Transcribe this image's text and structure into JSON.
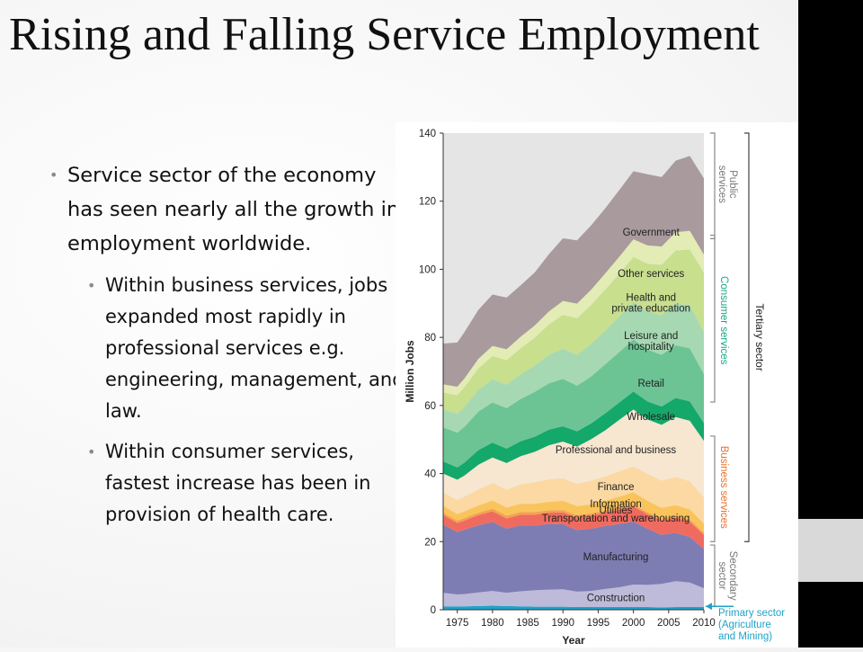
{
  "slide": {
    "title": "Rising and Falling Service Employment",
    "bullets": [
      {
        "level": 1,
        "text": "Service sector of the economy has seen nearly all the growth in employment worldwide."
      },
      {
        "level": 2,
        "text": "Within business services, jobs expanded most rapidly in professional services e.g. engineering, management, and law."
      },
      {
        "level": 2,
        "text": "Within consumer services, fastest increase has been in provision of health care."
      }
    ]
  },
  "chart_data": {
    "type": "area",
    "stacked": true,
    "xlabel": "Year",
    "ylabel": "Million Jobs",
    "ylim": [
      0,
      140
    ],
    "xlim": [
      1973,
      2010
    ],
    "yticks": [
      0,
      20,
      40,
      60,
      80,
      100,
      120,
      140
    ],
    "xticks": [
      1975,
      1980,
      1985,
      1990,
      1995,
      2000,
      2005,
      2010
    ],
    "x": [
      1973,
      1975,
      1976,
      1978,
      1980,
      1982,
      1984,
      1986,
      1988,
      1990,
      1992,
      1994,
      1996,
      1998,
      2000,
      2002,
      2004,
      2006,
      2008,
      2010
    ],
    "series": [
      {
        "name": "Primary sector (Agriculture and Mining)",
        "color": "#1fa3c8",
        "values": [
          1.0,
          1.0,
          1.0,
          1.1,
          1.2,
          1.1,
          1.0,
          0.9,
          0.9,
          0.9,
          0.8,
          0.8,
          0.8,
          0.8,
          0.8,
          0.8,
          0.7,
          0.8,
          0.8,
          0.8
        ]
      },
      {
        "name": "Construction",
        "color": "#bdbbd9",
        "values": [
          4.0,
          3.5,
          3.6,
          4.0,
          4.3,
          3.9,
          4.4,
          4.8,
          5.0,
          5.1,
          4.5,
          4.7,
          5.3,
          5.8,
          6.6,
          6.5,
          6.9,
          7.6,
          7.2,
          5.5
        ]
      },
      {
        "name": "Manufacturing",
        "color": "#7d7db3",
        "values": [
          20.0,
          18.3,
          18.9,
          19.7,
          20.3,
          18.8,
          19.4,
          19.0,
          19.3,
          19.1,
          18.1,
          18.3,
          18.5,
          18.6,
          18.5,
          16.5,
          14.4,
          14.2,
          13.4,
          11.5
        ]
      },
      {
        "name": "Transportation and warehousing",
        "color": "#ef6b60",
        "values": [
          2.8,
          2.7,
          2.7,
          3.0,
          3.1,
          3.0,
          3.1,
          3.2,
          3.3,
          3.5,
          3.6,
          3.8,
          4.0,
          4.2,
          4.4,
          4.2,
          4.2,
          4.4,
          4.5,
          4.2
        ]
      },
      {
        "name": "Utilities",
        "color": "#f7a04e",
        "values": [
          0.7,
          0.7,
          0.7,
          0.7,
          0.8,
          0.8,
          0.8,
          0.8,
          0.7,
          0.7,
          0.7,
          0.7,
          0.6,
          0.6,
          0.6,
          0.6,
          0.6,
          0.6,
          0.6,
          0.6
        ]
      },
      {
        "name": "Information",
        "color": "#f9c45c",
        "values": [
          2.0,
          1.9,
          2.0,
          2.1,
          2.4,
          2.4,
          2.4,
          2.4,
          2.5,
          2.7,
          2.7,
          2.7,
          2.9,
          3.2,
          3.6,
          3.4,
          3.1,
          3.1,
          3.0,
          2.7
        ]
      },
      {
        "name": "Finance",
        "color": "#fcd9a3",
        "values": [
          4.0,
          4.1,
          4.3,
          4.7,
          5.1,
          5.3,
          5.7,
          6.3,
          6.6,
          6.6,
          6.5,
          6.9,
          7.0,
          7.4,
          7.6,
          7.9,
          8.0,
          8.3,
          8.2,
          7.7
        ]
      },
      {
        "name": "Professional and business",
        "color": "#f7e6d0",
        "values": [
          5.5,
          6.0,
          6.2,
          7.3,
          7.5,
          7.8,
          8.3,
          9.0,
          10.0,
          10.8,
          11.0,
          12.2,
          13.6,
          15.2,
          16.7,
          16.0,
          16.4,
          17.6,
          17.8,
          16.6
        ]
      },
      {
        "name": "Wholesale",
        "color": "#14a86b",
        "values": [
          3.6,
          3.6,
          3.8,
          4.3,
          4.4,
          4.2,
          4.4,
          4.4,
          4.6,
          4.5,
          4.5,
          4.6,
          5.0,
          5.1,
          5.3,
          5.3,
          5.4,
          5.6,
          5.7,
          5.2
        ]
      },
      {
        "name": "Retail",
        "color": "#6cc495",
        "values": [
          10.0,
          10.2,
          10.5,
          11.3,
          11.8,
          11.9,
          12.4,
          13.2,
          13.6,
          13.9,
          13.4,
          13.8,
          14.4,
          14.8,
          15.3,
          15.2,
          15.2,
          15.5,
          15.6,
          14.4
        ]
      },
      {
        "name": "Leisure and hospitality",
        "color": "#a6d9b2",
        "values": [
          5.2,
          5.6,
          5.8,
          6.4,
          6.8,
          6.9,
          7.3,
          7.7,
          8.4,
          8.9,
          9.1,
          9.6,
          9.9,
          10.4,
          10.9,
          11.2,
          11.6,
          12.2,
          12.6,
          12.4
        ]
      },
      {
        "name": "Health and private education",
        "color": "#c8df8e",
        "values": [
          5.0,
          5.4,
          5.8,
          6.3,
          6.8,
          7.2,
          7.6,
          8.2,
          8.9,
          9.9,
          10.7,
          11.4,
          12.0,
          12.6,
          13.3,
          14.0,
          14.8,
          15.6,
          16.4,
          17.4
        ]
      },
      {
        "name": "Other services",
        "color": "#e2ecb4",
        "values": [
          2.4,
          2.5,
          2.6,
          2.8,
          3.0,
          3.2,
          3.4,
          3.6,
          3.8,
          4.1,
          4.3,
          4.5,
          4.8,
          5.0,
          5.2,
          5.4,
          5.4,
          5.4,
          5.5,
          5.3
        ]
      },
      {
        "name": "Government",
        "color": "#a99a9e",
        "values": [
          12.0,
          13.0,
          13.6,
          14.4,
          15.1,
          15.2,
          15.1,
          15.6,
          16.8,
          18.4,
          18.6,
          18.9,
          19.1,
          19.6,
          20.0,
          20.9,
          20.4,
          21.0,
          22.0,
          22.4
        ]
      }
    ],
    "groups": [
      {
        "name": "Public services",
        "color": "#7f7f7f",
        "from": 109,
        "to": 140
      },
      {
        "name": "Consumer services",
        "color": "#17a88a",
        "from": 61,
        "to": 110
      },
      {
        "name": "Business services",
        "color": "#e8702a",
        "from": 20,
        "to": 51
      },
      {
        "name": "Secondary sector",
        "color": "#7f7f7f",
        "from": 1,
        "to": 19
      },
      {
        "name": "Tertiary sector",
        "color": "#333333",
        "from": 20,
        "to": 140
      }
    ]
  }
}
